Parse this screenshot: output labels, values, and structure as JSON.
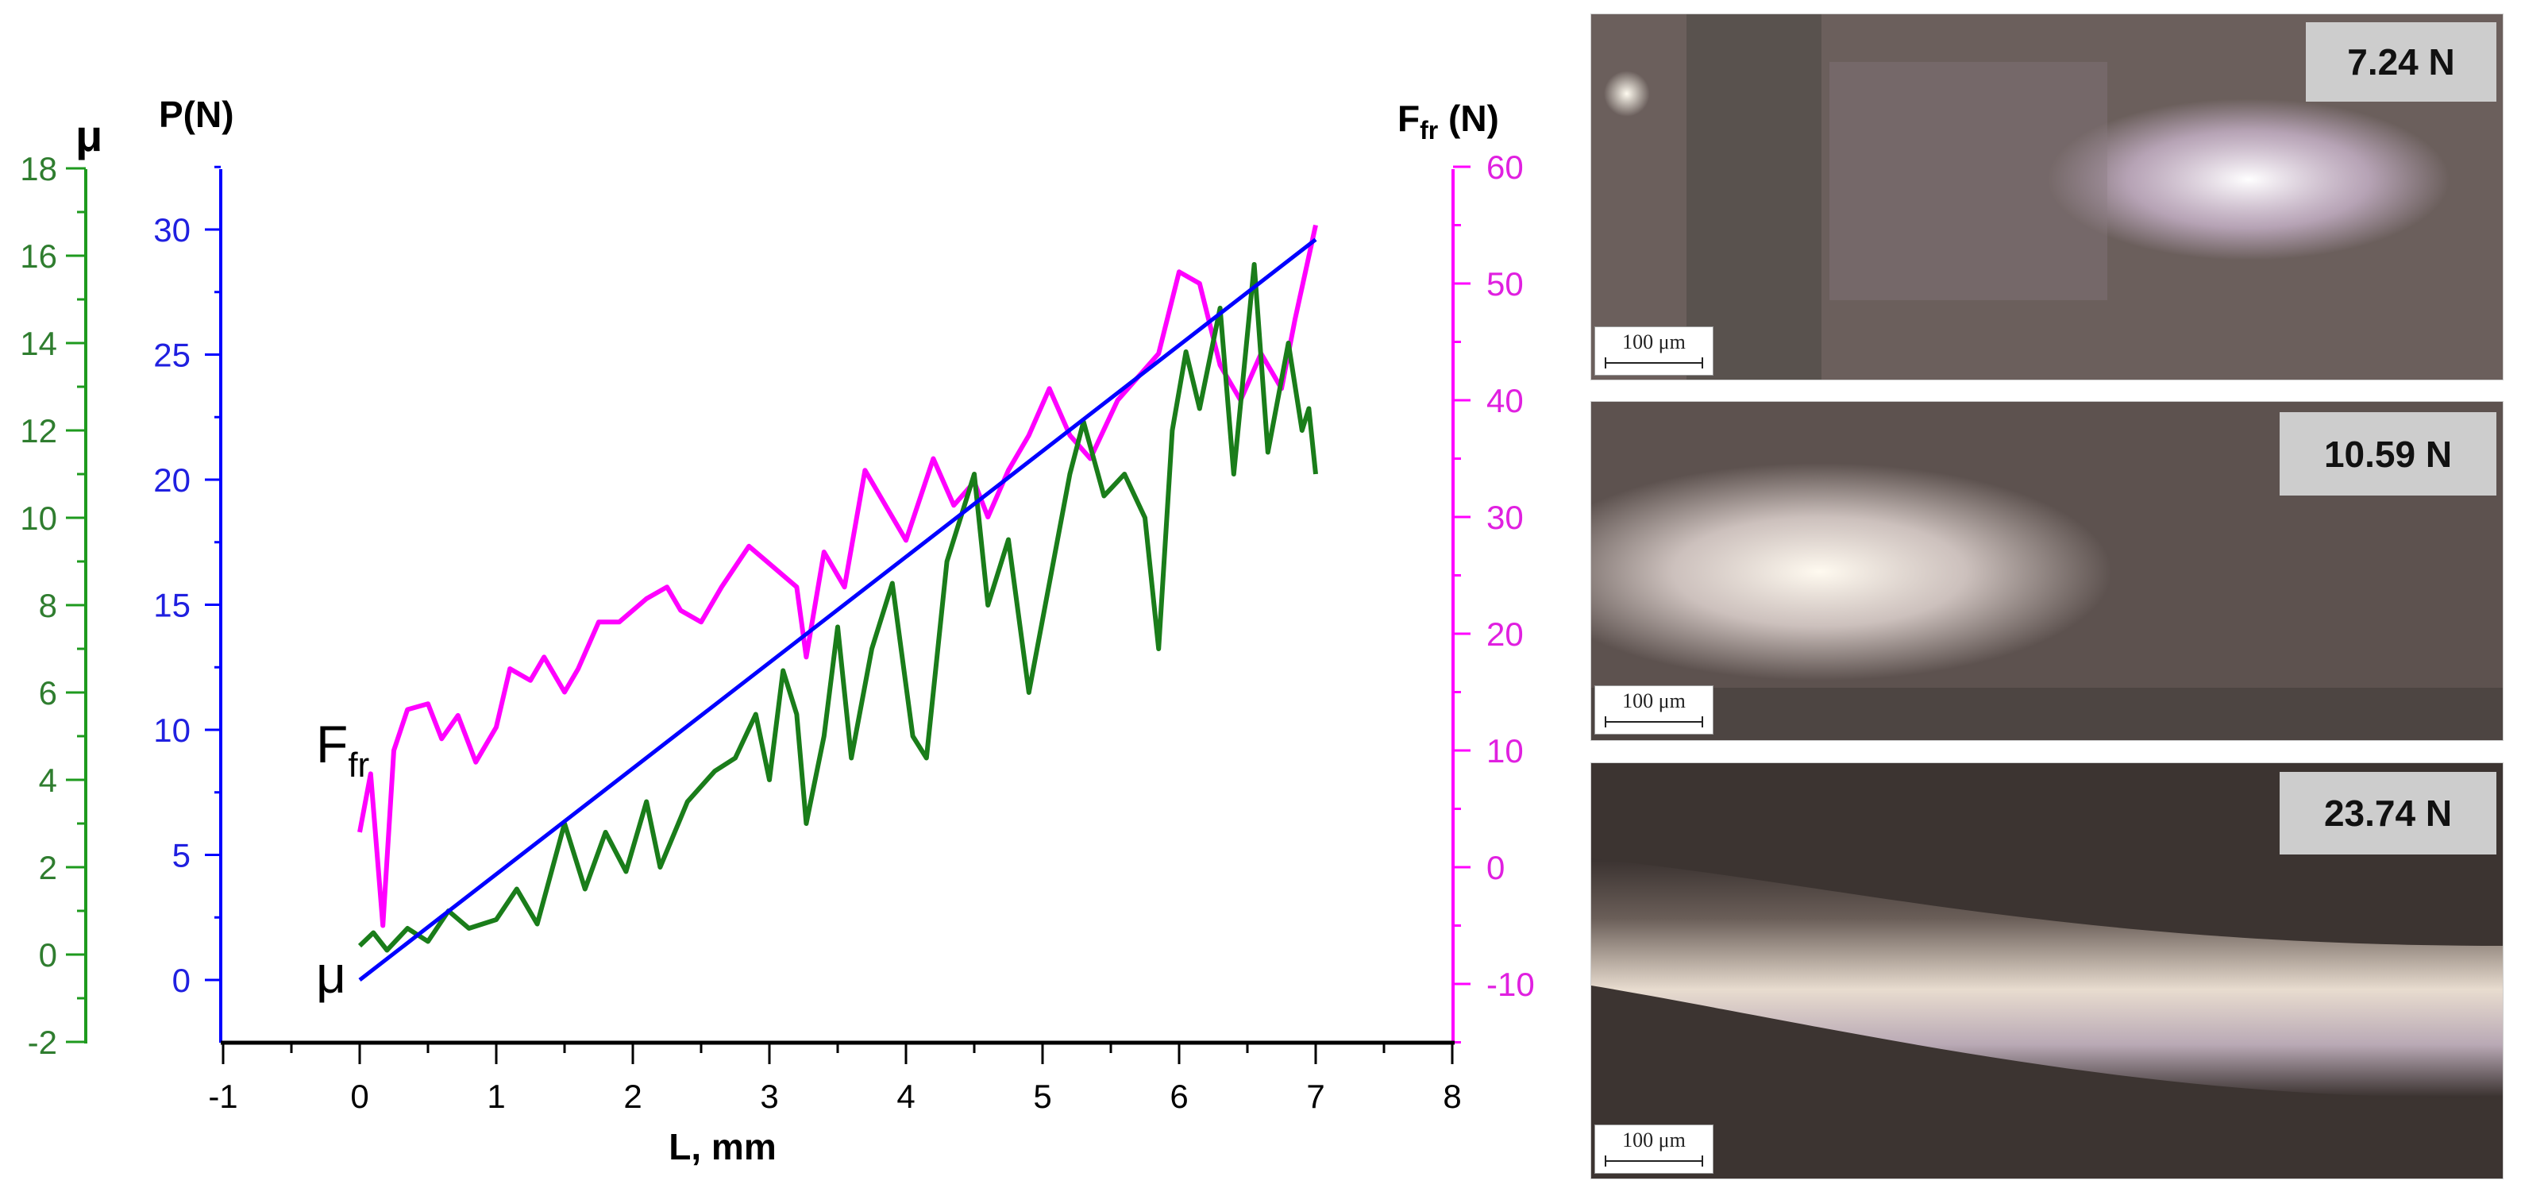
{
  "colors": {
    "mu": "#1a7d1a",
    "mu_axis": "#1e9a1e",
    "load": "#0000ff",
    "friction": "#ff00ff",
    "xaxis": "#000000"
  },
  "chart_data": {
    "type": "line",
    "title": "",
    "xlabel": "L, mm",
    "xlim": [
      -1,
      8
    ],
    "xticks": [
      -1,
      0,
      1,
      2,
      3,
      4,
      5,
      6,
      7,
      8
    ],
    "axes": {
      "mu": {
        "label": "μ",
        "side": "left-outer",
        "ylim": [
          -2,
          18
        ],
        "ticks": [
          -2,
          0,
          2,
          4,
          6,
          8,
          10,
          12,
          14,
          16,
          18
        ]
      },
      "P": {
        "label": "P(N)",
        "side": "left-inner",
        "ylim": [
          -2.5,
          32.5
        ],
        "ticks": [
          0,
          5,
          10,
          15,
          20,
          25,
          30
        ]
      },
      "Ffr": {
        "label": "F",
        "label_sub": "fr",
        "label_suffix": " (N)",
        "side": "right",
        "ylim": [
          -15,
          60
        ],
        "ticks": [
          -10,
          0,
          10,
          20,
          30,
          40,
          50,
          60
        ]
      }
    },
    "grid": false,
    "legend": "inline annotations",
    "annotations": [
      {
        "text": "F",
        "sub": "fr",
        "near": "Ffr curve start"
      },
      {
        "text": "μ",
        "near": "mu curve start"
      }
    ],
    "series": [
      {
        "name": "P (N)",
        "axis": "P",
        "color": "#0000ff",
        "x": [
          0,
          7
        ],
        "values": [
          0,
          29.6
        ]
      },
      {
        "name": "Ffr (N)",
        "axis": "Ffr",
        "color": "#ff00ff",
        "x": [
          0,
          0.08,
          0.17,
          0.25,
          0.35,
          0.5,
          0.6,
          0.72,
          0.85,
          1.0,
          1.1,
          1.25,
          1.35,
          1.5,
          1.6,
          1.75,
          1.9,
          2.1,
          2.25,
          2.35,
          2.5,
          2.65,
          2.85,
          3.0,
          3.2,
          3.27,
          3.4,
          3.55,
          3.7,
          3.85,
          4.0,
          4.2,
          4.35,
          4.5,
          4.6,
          4.75,
          4.9,
          5.05,
          5.2,
          5.35,
          5.55,
          5.7,
          5.85,
          6.0,
          6.15,
          6.3,
          6.45,
          6.6,
          6.75,
          6.85,
          7.0
        ],
        "values": [
          3,
          8,
          -5,
          10,
          13.5,
          14,
          11,
          13,
          9,
          12,
          17,
          16,
          18,
          15,
          17,
          21,
          21,
          23,
          24,
          22,
          21,
          24,
          27.5,
          26,
          24,
          18,
          27,
          24,
          34,
          31,
          28,
          35,
          31,
          33,
          30,
          34,
          37,
          41,
          37,
          35,
          40,
          42,
          44,
          51,
          50,
          43,
          40,
          44,
          41,
          47,
          55
        ]
      },
      {
        "name": "μ",
        "axis": "mu",
        "color": "#1a7d1a",
        "x": [
          0,
          0.1,
          0.2,
          0.35,
          0.5,
          0.65,
          0.8,
          1.0,
          1.15,
          1.3,
          1.5,
          1.65,
          1.8,
          1.95,
          2.1,
          2.2,
          2.4,
          2.6,
          2.75,
          2.9,
          3.0,
          3.1,
          3.2,
          3.27,
          3.4,
          3.5,
          3.6,
          3.75,
          3.9,
          4.05,
          4.15,
          4.3,
          4.5,
          4.6,
          4.75,
          4.9,
          5.05,
          5.2,
          5.3,
          5.45,
          5.6,
          5.75,
          5.85,
          5.95,
          6.05,
          6.15,
          6.3,
          6.4,
          6.55,
          6.65,
          6.8,
          6.9,
          6.95,
          7.0
        ],
        "values": [
          0.2,
          0.5,
          0.1,
          0.6,
          0.3,
          1.0,
          0.6,
          0.8,
          1.5,
          0.7,
          3.0,
          1.5,
          2.8,
          1.9,
          3.5,
          2.0,
          3.5,
          4.2,
          4.5,
          5.5,
          4.0,
          6.5,
          5.5,
          3.0,
          5.0,
          7.5,
          4.5,
          7.0,
          8.5,
          5.0,
          4.5,
          9.0,
          11.0,
          8.0,
          9.5,
          6.0,
          8.5,
          11.0,
          12.2,
          10.5,
          11.0,
          10.0,
          7.0,
          12.0,
          13.8,
          12.5,
          14.8,
          11.0,
          15.8,
          11.5,
          14.0,
          12.0,
          12.5,
          11.0
        ]
      }
    ]
  },
  "micrographs": [
    {
      "load_label": "7.24 N",
      "scale_bar": "100 μm"
    },
    {
      "load_label": "10.59 N",
      "scale_bar": "100 μm"
    },
    {
      "load_label": "23.74 N",
      "scale_bar": "100 μm"
    }
  ]
}
